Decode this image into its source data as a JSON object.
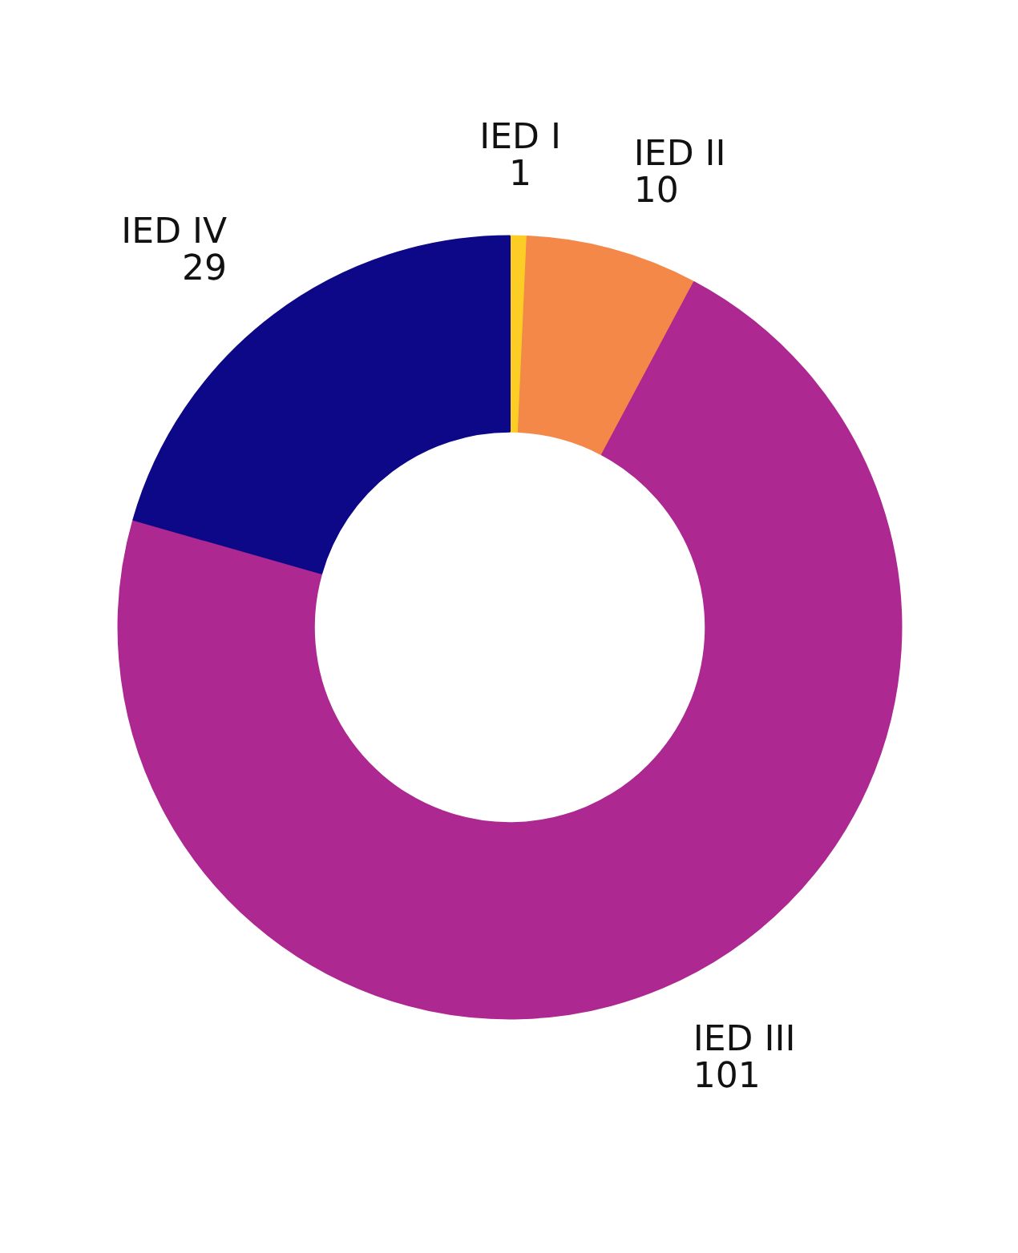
{
  "chart_data": {
    "type": "donut",
    "categories": [
      "IED I",
      "IED II",
      "IED III",
      "IED IV"
    ],
    "values": [
      1,
      10,
      101,
      29
    ],
    "colors": [
      "#fcce25",
      "#f48849",
      "#ad2891",
      "#0d0887"
    ],
    "data_labels": true
  }
}
